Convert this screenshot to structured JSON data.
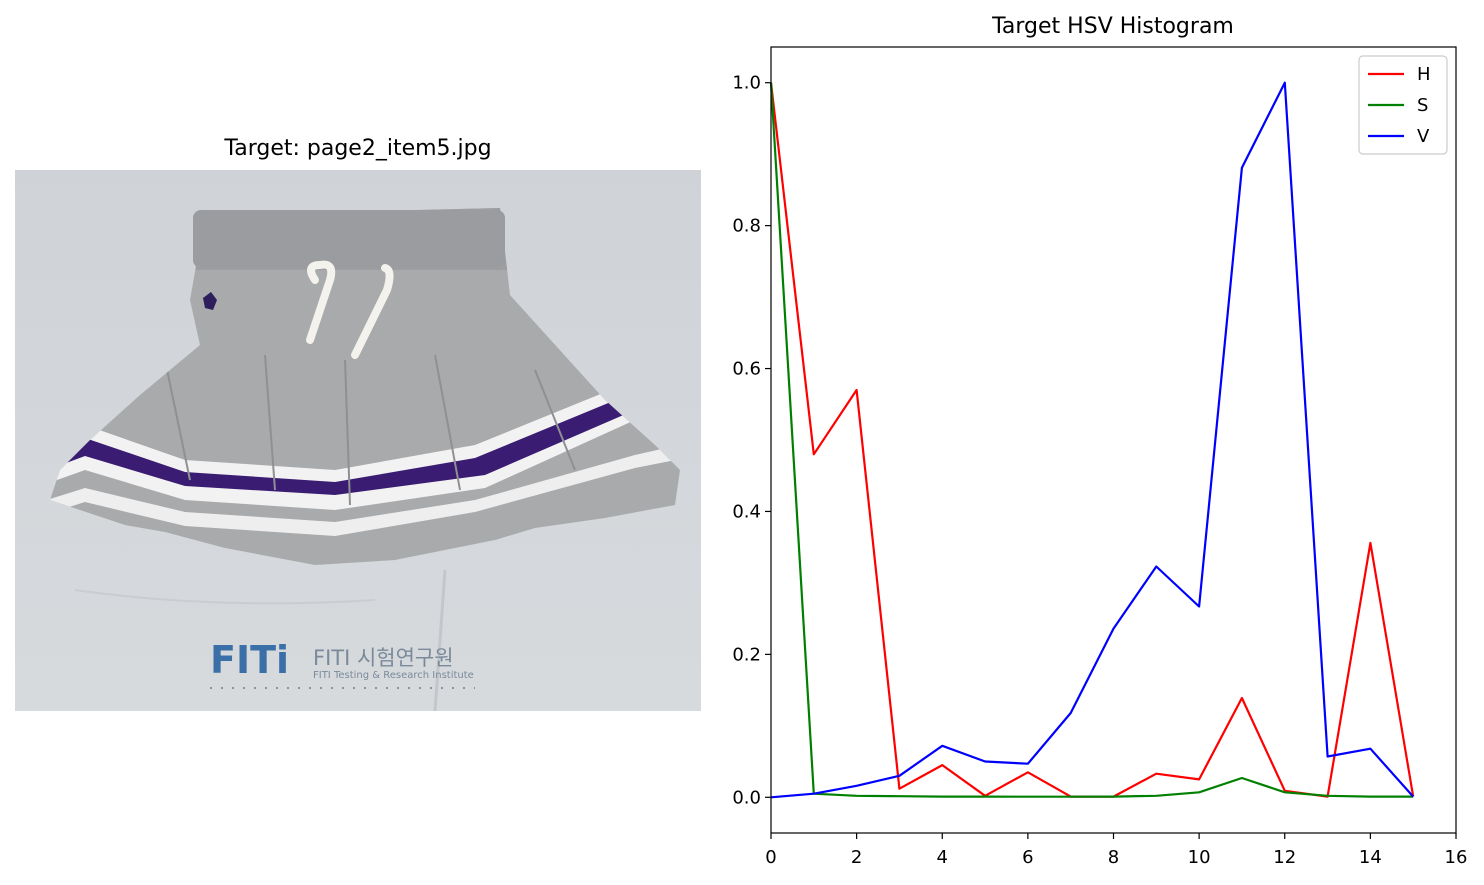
{
  "left_panel": {
    "title": "Target: page2_item5.jpg",
    "watermark": {
      "logo": "FITi",
      "name": "FITI 시험연구원",
      "subtitle": "FITI Testing & Research Institute"
    }
  },
  "chart_data": {
    "type": "line",
    "title": "Target HSV Histogram",
    "xlabel": "",
    "ylabel": "",
    "xlim": [
      0,
      16
    ],
    "ylim": [
      -0.05,
      1.05
    ],
    "xticks": [
      "0",
      "2",
      "4",
      "6",
      "8",
      "10",
      "12",
      "14",
      "16"
    ],
    "yticks": [
      "0.0",
      "0.2",
      "0.4",
      "0.6",
      "0.8",
      "1.0"
    ],
    "grid": false,
    "legend_position": "top-right",
    "x": [
      0,
      1,
      2,
      3,
      4,
      5,
      6,
      7,
      8,
      9,
      10,
      11,
      12,
      13,
      14,
      15
    ],
    "series": [
      {
        "name": "H",
        "color": "#ff0000",
        "values": [
          1.0,
          0.48,
          0.57,
          0.012,
          0.045,
          0.002,
          0.035,
          0.001,
          0.001,
          0.033,
          0.025,
          0.139,
          0.009,
          0.001,
          0.356,
          0.001
        ]
      },
      {
        "name": "S",
        "color": "#008000",
        "values": [
          1.0,
          0.005,
          0.002,
          0.0015,
          0.001,
          0.001,
          0.0008,
          0.0008,
          0.001,
          0.002,
          0.007,
          0.027,
          0.007,
          0.002,
          0.001,
          0.001
        ]
      },
      {
        "name": "V",
        "color": "#0000ff",
        "values": [
          0.0,
          0.005,
          0.016,
          0.03,
          0.072,
          0.05,
          0.047,
          0.118,
          0.236,
          0.323,
          0.267,
          0.881,
          1.0,
          0.057,
          0.068,
          0.001
        ]
      }
    ]
  }
}
